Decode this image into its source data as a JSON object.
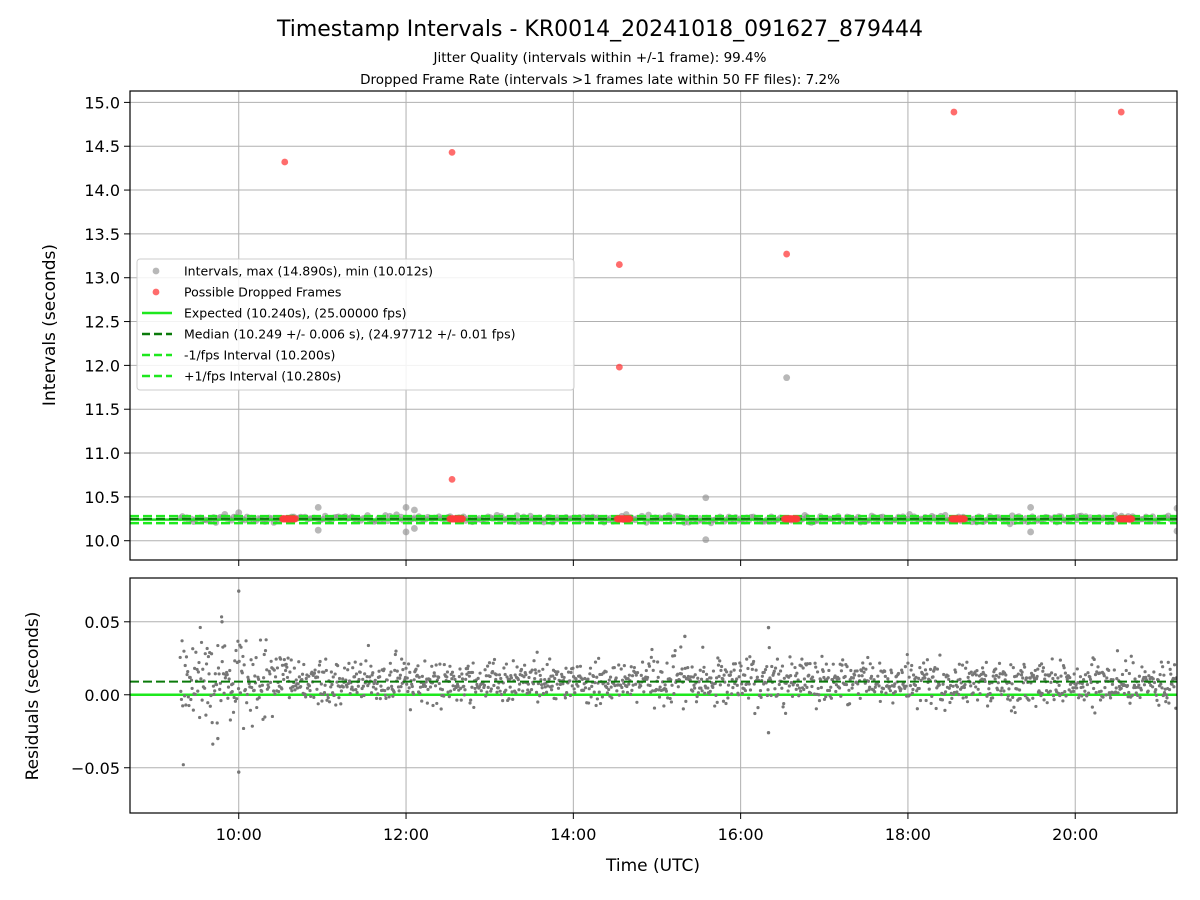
{
  "chart_data": [
    {
      "type": "scatter",
      "title": "Timestamp Intervals - KR0014_20241018_091627_879444",
      "subtitle_lines": [
        "Jitter Quality (intervals within +/-1 frame): 99.4%",
        "Dropped Frame Rate (intervals >1 frames late within 50 FF files): 7.2%"
      ],
      "ylabel": "Intervals (seconds)",
      "xlim": [
        "08:42",
        "21:13"
      ],
      "ylim": [
        9.78,
        15.13
      ],
      "yticks": [
        "10.0",
        "10.5",
        "11.0",
        "11.5",
        "12.0",
        "12.5",
        "13.0",
        "13.5",
        "14.0",
        "14.5",
        "15.0"
      ],
      "grid": true,
      "legend_position": "center-left",
      "legend": [
        {
          "label": "Intervals, max (14.890s), min (10.012s)",
          "marker": "dot",
          "color": "#888888"
        },
        {
          "label": "Possible Dropped Frames",
          "marker": "dot",
          "color": "#ff3b3b"
        },
        {
          "label": "Expected (10.240s), (25.00000 fps)",
          "marker": "line",
          "color": "#1ee81e"
        },
        {
          "label": "Median (10.249 +/- 0.006 s), (24.97712 +/- 0.01 fps)",
          "marker": "dashed",
          "color": "#0a7a0a"
        },
        {
          "label": "-1/fps Interval (10.200s)",
          "marker": "dashed",
          "color": "#1ee81e"
        },
        {
          "label": "+1/fps Interval (10.280s)",
          "marker": "dashed",
          "color": "#1ee81e"
        }
      ],
      "reference_lines": {
        "expected": 10.24,
        "median": 10.249,
        "minus_fps": 10.2,
        "plus_fps": 10.28
      },
      "series": [
        {
          "name": "Intervals, max (14.890s), min (10.012s)",
          "color": "#888888",
          "time_range": [
            "09:18",
            "21:13"
          ],
          "baseline_value": 10.249,
          "outliers": [
            {
              "time": "09:50",
              "value": 10.3
            },
            {
              "time": "10:00",
              "value": 10.32
            },
            {
              "time": "10:57",
              "value": 10.38
            },
            {
              "time": "10:57",
              "value": 10.12
            },
            {
              "time": "12:00",
              "value": 10.38
            },
            {
              "time": "12:00",
              "value": 10.1
            },
            {
              "time": "12:06",
              "value": 10.35
            },
            {
              "time": "12:06",
              "value": 10.14
            },
            {
              "time": "15:35",
              "value": 10.49
            },
            {
              "time": "15:35",
              "value": 10.012
            },
            {
              "time": "16:33",
              "value": 11.86
            },
            {
              "time": "19:28",
              "value": 10.38
            },
            {
              "time": "19:28",
              "value": 10.1
            },
            {
              "time": "21:13",
              "value": 10.37
            },
            {
              "time": "21:13",
              "value": 10.11
            }
          ]
        },
        {
          "name": "Possible Dropped Frames",
          "color": "#ff3b3b",
          "points": [
            {
              "time": "10:33",
              "value": 14.32
            },
            {
              "time": "12:33",
              "value": 14.43
            },
            {
              "time": "12:33",
              "value": 10.7
            },
            {
              "time": "14:33",
              "value": 13.15
            },
            {
              "time": "14:33",
              "value": 11.98
            },
            {
              "time": "16:33",
              "value": 13.27
            },
            {
              "time": "18:33",
              "value": 14.89
            },
            {
              "time": "20:33",
              "value": 14.89
            }
          ],
          "clusters": [
            {
              "time": "10:36",
              "value": 10.249
            },
            {
              "time": "12:36",
              "value": 10.249
            },
            {
              "time": "14:36",
              "value": 10.249
            },
            {
              "time": "16:36",
              "value": 10.249
            },
            {
              "time": "18:36",
              "value": 10.249
            },
            {
              "time": "20:36",
              "value": 10.249
            }
          ]
        }
      ]
    },
    {
      "type": "scatter",
      "xlabel": "Time (UTC)",
      "ylabel": "Residuals (seconds)",
      "xlim": [
        "08:42",
        "21:13"
      ],
      "ylim": [
        -0.081,
        0.08
      ],
      "xticks": [
        "10:00",
        "12:00",
        "14:00",
        "16:00",
        "18:00",
        "20:00"
      ],
      "yticks": [
        "0.05",
        "0.00",
        "−0.05"
      ],
      "ytick_values": [
        0.05,
        0.0,
        -0.05
      ],
      "grid": true,
      "reference_lines": {
        "zero": 0.0,
        "median_offset": 0.009
      },
      "series": [
        {
          "name": "Residuals",
          "color": "#777777",
          "time_range": [
            "09:18",
            "21:13"
          ],
          "center": 0.009,
          "outliers": [
            {
              "time": "10:00",
              "value": 0.071
            },
            {
              "time": "10:00",
              "value": -0.053
            },
            {
              "time": "09:48",
              "value": 0.05
            },
            {
              "time": "15:20",
              "value": 0.04
            },
            {
              "time": "16:20",
              "value": 0.046
            },
            {
              "time": "16:20",
              "value": -0.026
            },
            {
              "time": "09:45",
              "value": -0.03
            }
          ]
        }
      ]
    }
  ]
}
